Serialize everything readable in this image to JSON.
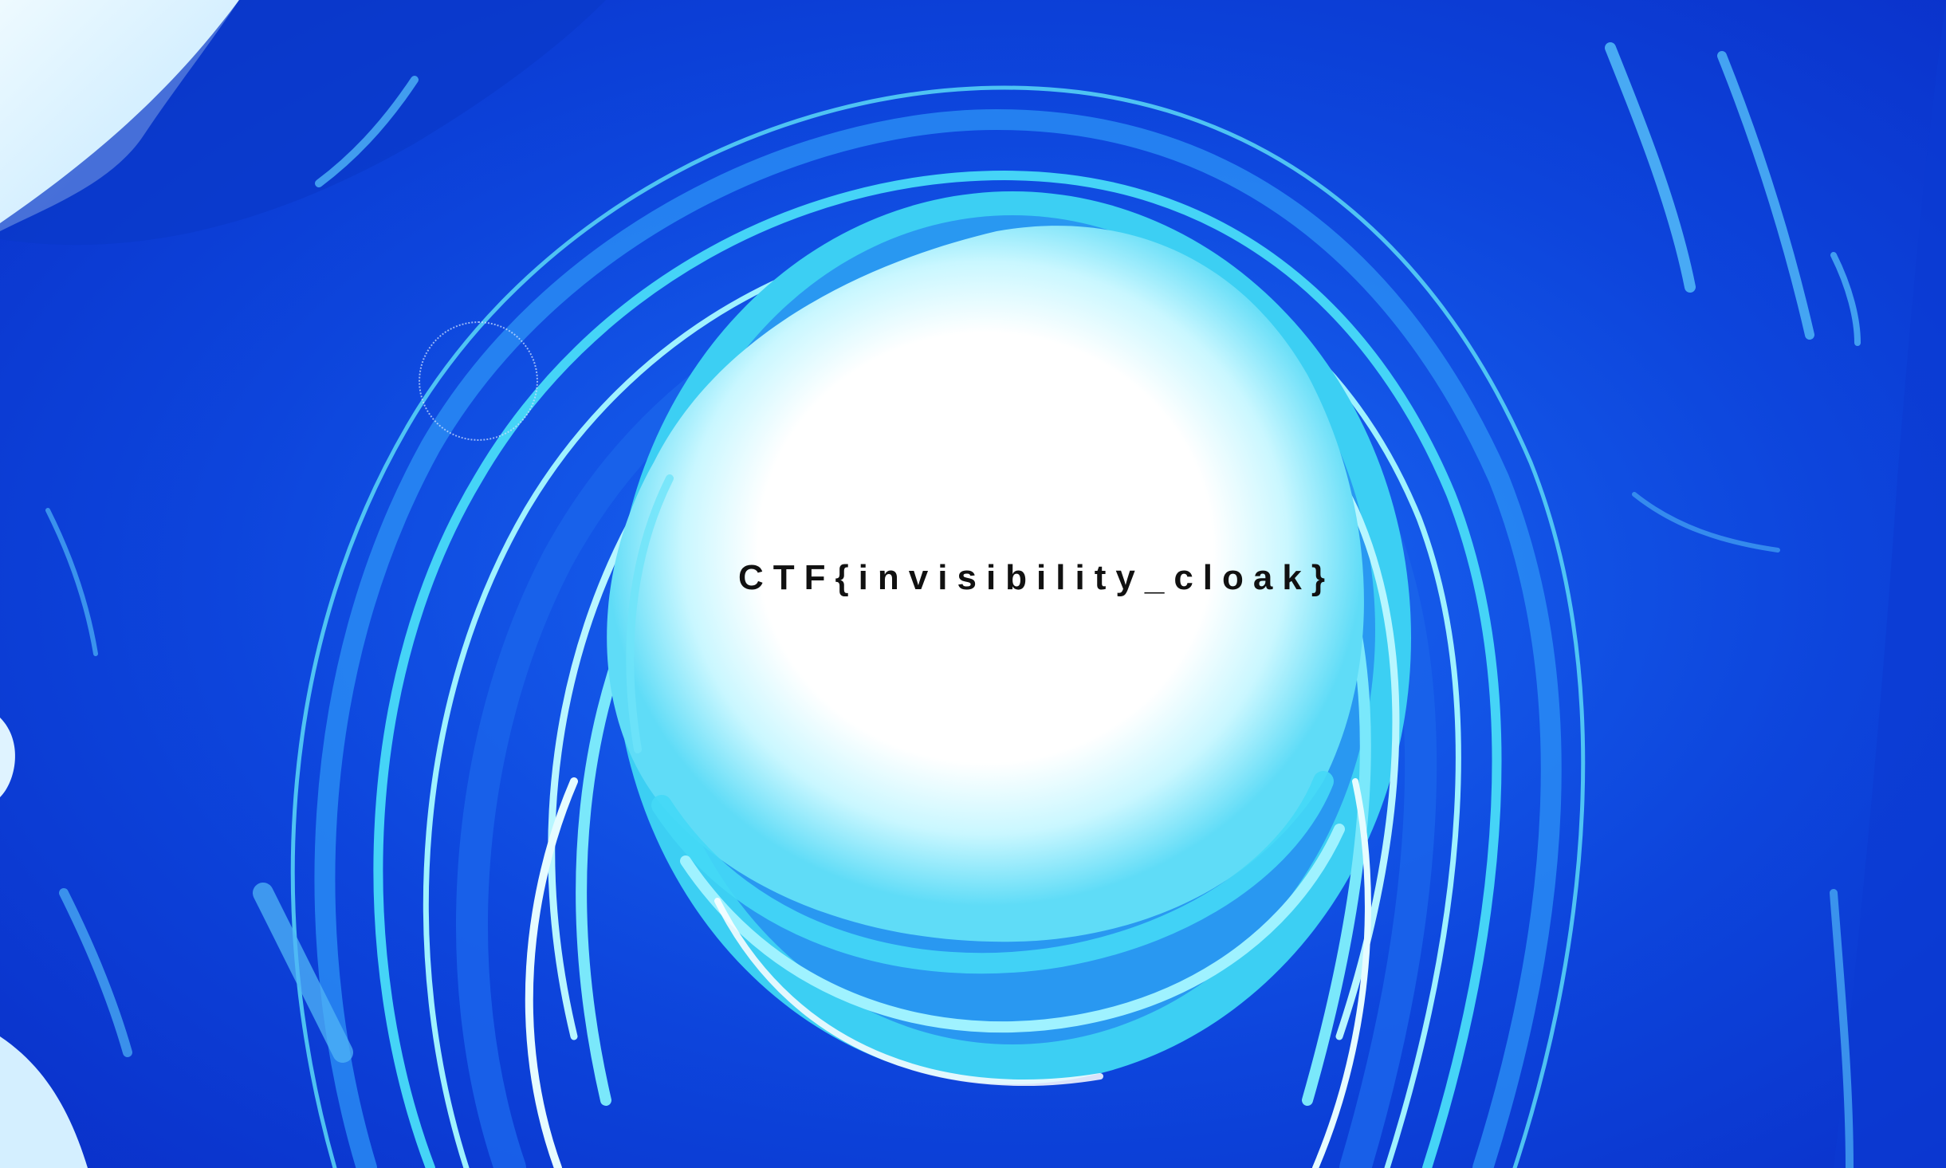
{
  "image": {
    "flag_text": "CTF{invisibility_cloak}",
    "colors": {
      "deep_blue": "#0a2fd0",
      "mid_blue": "#1565f0",
      "cyan": "#3fd6f5",
      "light_cyan": "#9ff2ff",
      "center_white": "#ffffff",
      "text": "#111111"
    }
  }
}
